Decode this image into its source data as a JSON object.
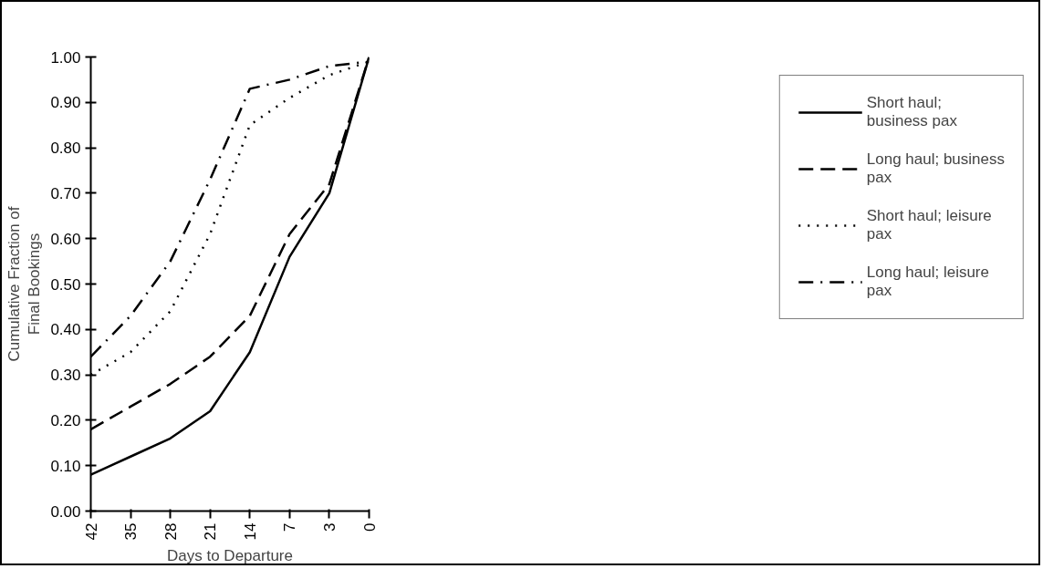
{
  "chart_data": {
    "type": "line",
    "xlabel": "Days to Departure",
    "ylabel": "Cumulative Fraction of Final Bookings",
    "categories": [
      "42",
      "35",
      "28",
      "21",
      "14",
      "7",
      "3",
      "0"
    ],
    "series": [
      {
        "name": "Short haul; business pax",
        "color": "#000000",
        "line_style": "solid",
        "values": [
          0.08,
          0.12,
          0.16,
          0.22,
          0.35,
          0.56,
          0.7,
          1.0
        ]
      },
      {
        "name": "Long haul; business pax",
        "color": "#000000",
        "line_style": "dashed",
        "values": [
          0.18,
          0.23,
          0.28,
          0.34,
          0.43,
          0.61,
          0.72,
          1.0
        ]
      },
      {
        "name": "Short haul; leisure pax",
        "color": "#000000",
        "line_style": "dotted",
        "values": [
          0.3,
          0.35,
          0.44,
          0.61,
          0.85,
          0.91,
          0.96,
          0.99
        ]
      },
      {
        "name": "Long haul; leisure pax",
        "color": "#000000",
        "line_style": "dashdot",
        "values": [
          0.34,
          0.43,
          0.55,
          0.73,
          0.93,
          0.95,
          0.98,
          0.99
        ]
      }
    ],
    "ylim": [
      0,
      1
    ],
    "yticks": [
      {
        "value": 0,
        "label": "0.00"
      },
      {
        "value": 0.1,
        "label": "0.10"
      },
      {
        "value": 0.2,
        "label": "0.20"
      },
      {
        "value": 0.3,
        "label": "0.30"
      },
      {
        "value": 0.4,
        "label": "0.40"
      },
      {
        "value": 0.5,
        "label": "0.50"
      },
      {
        "value": 0.6,
        "label": "0.60"
      },
      {
        "value": 0.7,
        "label": "0.70"
      },
      {
        "value": 0.8,
        "label": "0.80"
      },
      {
        "value": 0.9,
        "label": "0.90"
      },
      {
        "value": 1,
        "label": "1.00"
      }
    ],
    "grid": false,
    "legend": "right",
    "marker": "none"
  }
}
